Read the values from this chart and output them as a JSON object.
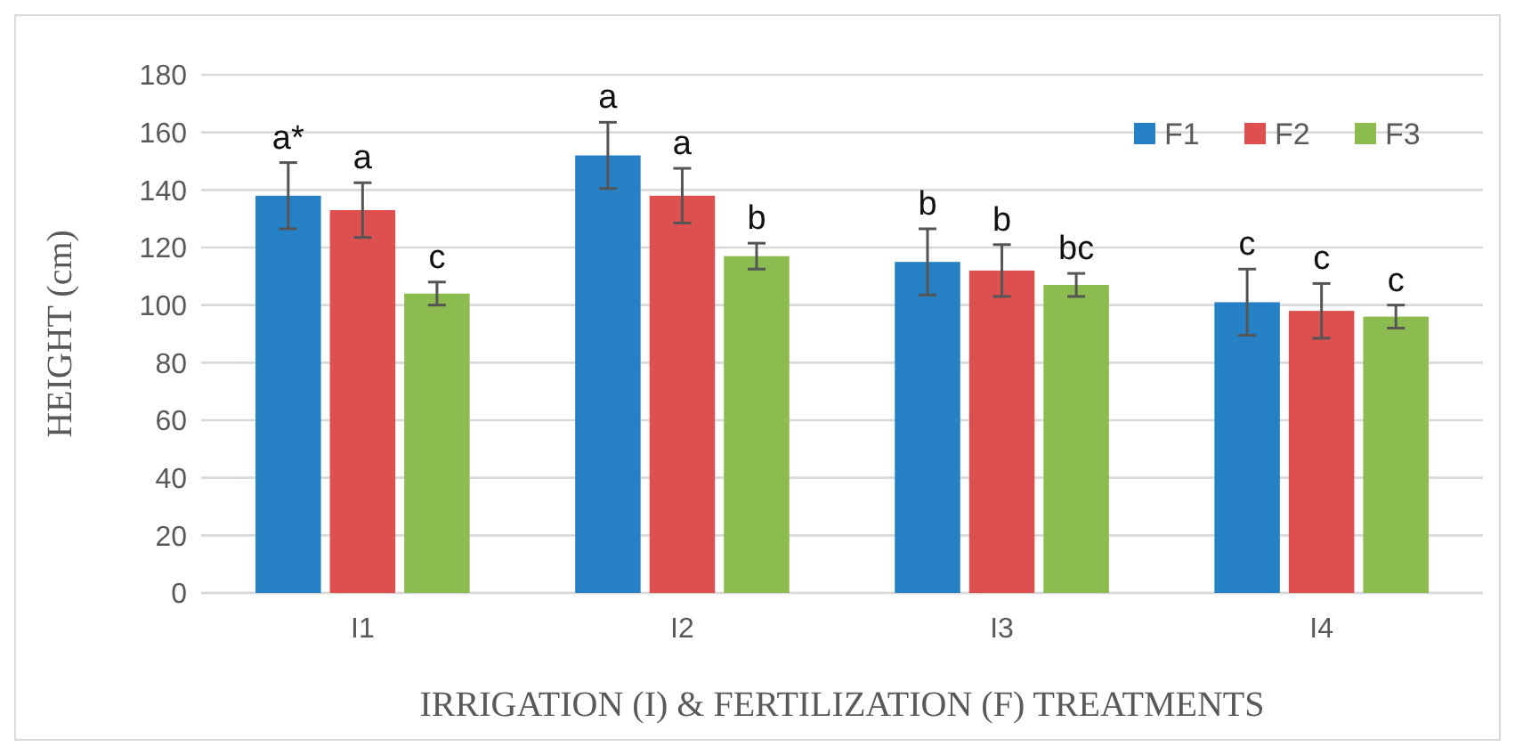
{
  "chart_data": {
    "type": "bar",
    "xlabel": "IRRIGATION (I) & FERTILIZATION (F) TREATMENTS",
    "ylabel": "HEIGHT (cm)",
    "categories": [
      "I1",
      "I2",
      "I3",
      "I4"
    ],
    "series": [
      {
        "name": "F1",
        "color": "#2581c4",
        "values": [
          138,
          152,
          115,
          101
        ],
        "errors": [
          11.5,
          11.5,
          11.5,
          11.5
        ],
        "value_labels": [
          "a*",
          "a",
          "b",
          "c"
        ]
      },
      {
        "name": "F2",
        "color": "#de4f4f",
        "values": [
          133,
          138,
          112,
          98
        ],
        "errors": [
          9.5,
          9.5,
          9,
          9.5
        ],
        "value_labels": [
          "a",
          "a",
          "b",
          "c"
        ]
      },
      {
        "name": "F3",
        "color": "#8cbb4f",
        "values": [
          104,
          117,
          107,
          96
        ],
        "errors": [
          4,
          4.5,
          4,
          4
        ],
        "value_labels": [
          "c",
          "b",
          "bc",
          "c"
        ]
      }
    ],
    "ylim": [
      0,
      180
    ],
    "yticks": [
      0,
      20,
      40,
      60,
      80,
      100,
      120,
      140,
      160,
      180
    ],
    "grid": "y",
    "legend": "top right"
  }
}
